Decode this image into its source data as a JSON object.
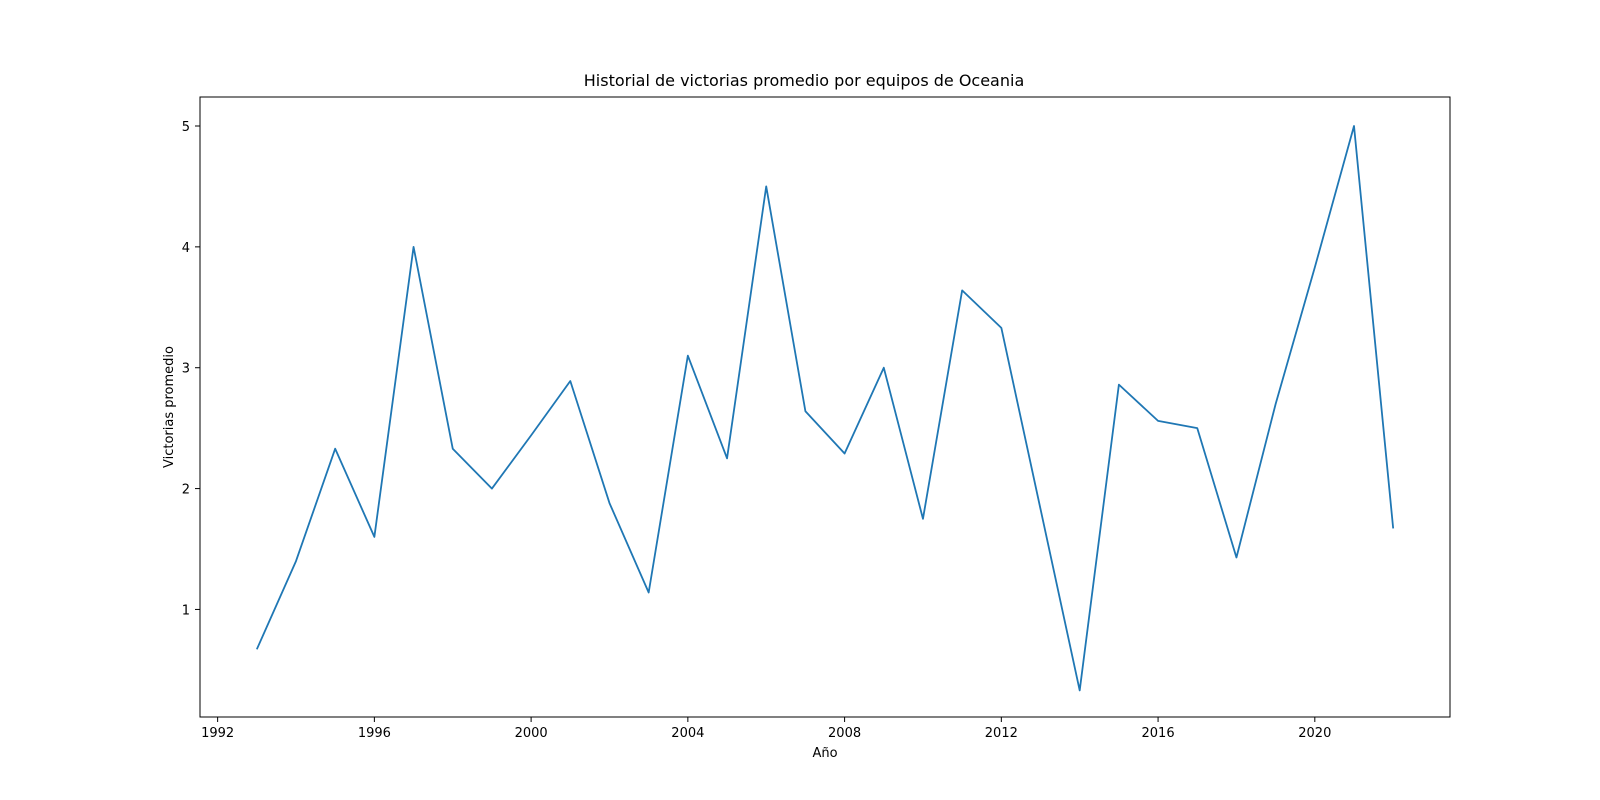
{
  "chart_data": {
    "type": "line",
    "title": "Historial de victorias promedio por equipos de Oceania",
    "xlabel": "Año",
    "ylabel": "Victorias promedio",
    "xlim": [
      1991.55,
      2023.45
    ],
    "ylim": [
      0.11,
      5.24
    ],
    "x_ticks": [
      1992,
      1996,
      2000,
      2004,
      2008,
      2012,
      2016,
      2020
    ],
    "y_ticks": [
      1,
      2,
      3,
      4,
      5
    ],
    "grid": false,
    "color": "#1f77b4",
    "series": [
      {
        "x": [
          1993,
          1994,
          1995,
          1996,
          1997,
          1998,
          1999,
          2000,
          2001,
          2002,
          2003,
          2004,
          2005,
          2006,
          2007,
          2008,
          2009,
          2010,
          2011,
          2012,
          2013,
          2014,
          2015,
          2016,
          2017,
          2018,
          2019,
          2020,
          2021,
          2022
        ],
        "y": [
          0.67,
          1.4,
          2.33,
          1.6,
          4.0,
          2.33,
          2.0,
          2.44,
          2.89,
          1.88,
          1.14,
          3.1,
          2.25,
          4.5,
          2.64,
          2.29,
          3.0,
          1.75,
          3.64,
          3.33,
          1.83,
          0.33,
          2.86,
          2.56,
          2.5,
          1.43,
          2.7,
          3.83,
          5.0,
          1.67
        ]
      }
    ]
  }
}
